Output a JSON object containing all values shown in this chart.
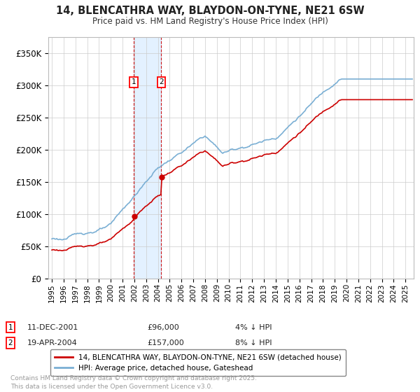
{
  "title": "14, BLENCATHRA WAY, BLAYDON-ON-TYNE, NE21 6SW",
  "subtitle": "Price paid vs. HM Land Registry's House Price Index (HPI)",
  "ylim": [
    0,
    370000
  ],
  "xlim_start": 1994.7,
  "xlim_end": 2025.7,
  "legend_line1": "14, BLENCATHRA WAY, BLAYDON-ON-TYNE, NE21 6SW (detached house)",
  "legend_line2": "HPI: Average price, detached house, Gateshead",
  "line1_color": "#cc0000",
  "line2_color": "#7aafd4",
  "purchase1_date": 2001.94,
  "purchase1_price": 96000,
  "purchase2_date": 2004.29,
  "purchase2_price": 157000,
  "footer": "Contains HM Land Registry data © Crown copyright and database right 2025.\nThis data is licensed under the Open Government Licence v3.0.",
  "background_color": "#ffffff",
  "grid_color": "#cccccc",
  "highlight_fill": "#ddeeff",
  "marker_y": 305000
}
